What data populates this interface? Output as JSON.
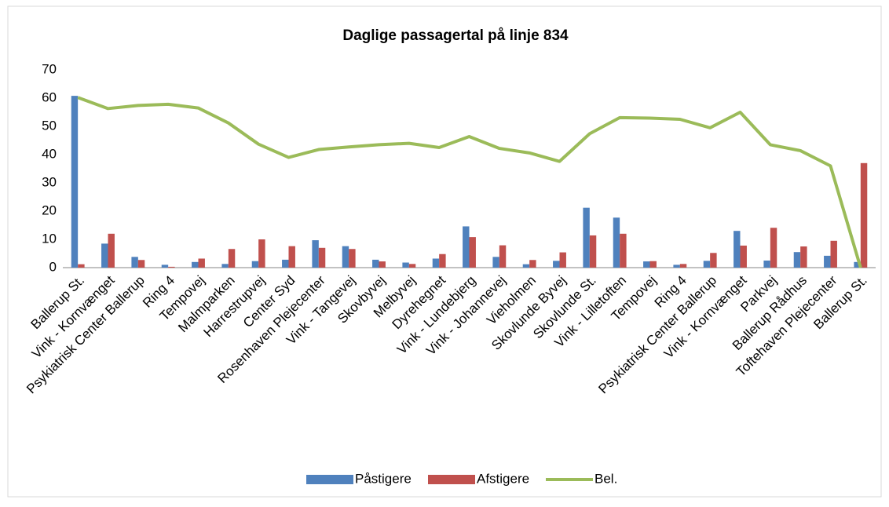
{
  "chart_data": {
    "type": "bar_line",
    "title": "Daglige passagertal på linje 834",
    "categories": [
      "Ballerup St.",
      "Vink - Kornvænget",
      "Psykiatrisk Center Ballerup",
      "Ring 4",
      "Tempovej",
      "Malmparken",
      "Harrestrupvej",
      "Center Syd",
      "Rosenhaven Plejecenter",
      "Vink - Tangevej",
      "Skovbyvej",
      "Melbyvej",
      "Dyrehegnet",
      "Vink - Lundebjerg",
      "Vink - Johannevej",
      "Vieholmen",
      "Skovlunde Byvej",
      "Skovlunde St.",
      "Vink - Lilletoften",
      "Tempovej",
      "Ring 4",
      "Psykiatrisk Center Ballerup",
      "Vink - Kornvænget",
      "Parkvej",
      "Ballerup Rådhus",
      "Toftehaven Plejecenter",
      "Ballerup St."
    ],
    "series": [
      {
        "name": "Påstigere",
        "color": "#4f81bd",
        "kind": "bar",
        "values": [
          60.8,
          8.5,
          3.8,
          1,
          2,
          1.3,
          2.3,
          2.8,
          9.7,
          7.6,
          2.8,
          1.8,
          3.2,
          14.6,
          3.8,
          1.2,
          2.4,
          21.2,
          17.7,
          2.2,
          1,
          2.4,
          13,
          2.5,
          5.5,
          4.2,
          2
        ]
      },
      {
        "name": "Afstigere",
        "color": "#c0504d",
        "kind": "bar",
        "values": [
          1.2,
          12,
          2.7,
          0.3,
          3.2,
          6.6,
          10,
          7.6,
          7,
          6.6,
          2.2,
          1.3,
          4.8,
          10.8,
          7.9,
          2.7,
          5.4,
          11.4,
          12,
          2.3,
          1.3,
          5.2,
          7.8,
          14.1,
          7.5,
          9.5,
          37
        ]
      },
      {
        "name": "Bel.",
        "color": "#9bbb59",
        "kind": "line",
        "values": [
          60.2,
          56.3,
          57.4,
          57.8,
          56.5,
          51.2,
          43.7,
          39,
          41.8,
          42.7,
          43.5,
          44,
          42.5,
          46.4,
          42.2,
          40.6,
          37.6,
          47.4,
          53.1,
          52.9,
          52.5,
          49.5,
          55,
          43.5,
          41.4,
          36,
          0
        ]
      }
    ],
    "ylim": [
      0,
      70
    ],
    "yticks": [
      0,
      10,
      20,
      30,
      40,
      50,
      60,
      70
    ],
    "legend": "bottom"
  }
}
